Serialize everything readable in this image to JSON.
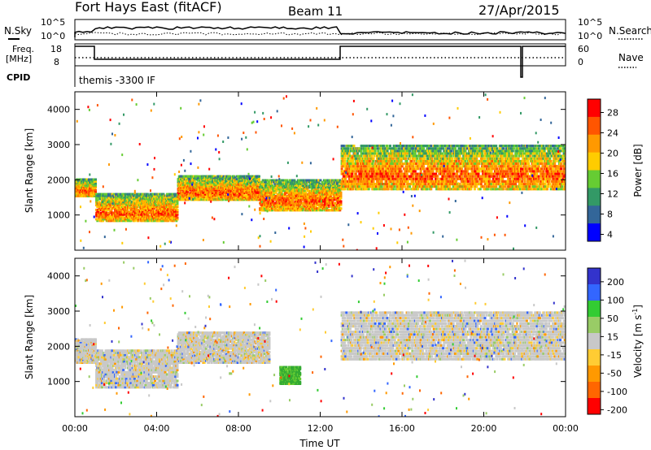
{
  "header": {
    "station": "Fort Hays East (fitACF)",
    "beam": "Beam 11",
    "date": "27/Apr/2015"
  },
  "top_panels": {
    "nsky_label": "N.Sky",
    "nsky_ticks": [
      "10^5",
      "10^0"
    ],
    "nsearch_label": "N.Search",
    "nsearch_ticks": [
      "10^5",
      "10^0"
    ],
    "freq_label_1": "Freq.",
    "freq_label_2": "[MHz]",
    "freq_ticks": [
      "18",
      "8"
    ],
    "nave_label": "Nave",
    "nave_ticks": [
      "60",
      "0"
    ],
    "cpid_label": "CPID",
    "cpid_value": "themis -3300 IF"
  },
  "chart_data": [
    {
      "type": "heatmap",
      "name": "power",
      "ylabel": "Slant Range [km]",
      "xlabel": "",
      "ylim": [
        0,
        4500
      ],
      "yticks": [
        "1000",
        "2000",
        "3000",
        "4000"
      ],
      "x_ticks": [
        "00:00",
        "04:00",
        "08:00",
        "12:00",
        "16:00",
        "20:00",
        "00:00"
      ],
      "colorbar": {
        "label": "Power [dB]",
        "ticks": [
          "28",
          "24",
          "20",
          "16",
          "12",
          "8",
          "4"
        ],
        "range": [
          0,
          30
        ],
        "colors": [
          "#ff0000",
          "#ff5500",
          "#ff9900",
          "#ffcc00",
          "#66cc33",
          "#339966",
          "#336699",
          "#0000ff"
        ]
      },
      "bands": [
        {
          "t": [
            0.0,
            1.0
          ],
          "r": [
            1500,
            2000
          ],
          "level": 24
        },
        {
          "t": [
            1.0,
            5.0
          ],
          "r": [
            800,
            1600
          ],
          "level": 24
        },
        {
          "t": [
            5.0,
            9.0
          ],
          "r": [
            1400,
            2100
          ],
          "level": 16
        },
        {
          "t": [
            9.0,
            13.0
          ],
          "r": [
            1100,
            2000
          ],
          "level": 16
        },
        {
          "t": [
            13.0,
            24.0
          ],
          "r": [
            1700,
            3000
          ],
          "level": 12
        }
      ]
    },
    {
      "type": "heatmap",
      "name": "velocity",
      "ylabel": "Slant Range [km]",
      "xlabel": "Time UT",
      "ylim": [
        0,
        4500
      ],
      "yticks": [
        "1000",
        "2000",
        "3000",
        "4000"
      ],
      "x_ticks": [
        "00:00",
        "04:00",
        "08:00",
        "12:00",
        "16:00",
        "20:00",
        "00:00"
      ],
      "colorbar": {
        "label": "Velocity [m s",
        "label_sup": "-1",
        "label_end": "]",
        "ticks": [
          "200",
          "100",
          "50",
          "15",
          "-15",
          "-50",
          "-100",
          "-200"
        ],
        "colors": [
          "#3333cc",
          "#3366ff",
          "#33cc33",
          "#99cc66",
          "#c8c8c8",
          "#ffcc33",
          "#ff9900",
          "#ff6600",
          "#ff0000"
        ]
      },
      "bands": [
        {
          "t": [
            0.0,
            1.0
          ],
          "r": [
            1500,
            2200
          ],
          "level": 0
        },
        {
          "t": [
            1.0,
            5.0
          ],
          "r": [
            800,
            1900
          ],
          "level": 0
        },
        {
          "t": [
            5.0,
            9.5
          ],
          "r": [
            1500,
            2400
          ],
          "level": 0
        },
        {
          "t": [
            10.0,
            11.0
          ],
          "r": [
            900,
            1400
          ],
          "level": 80
        },
        {
          "t": [
            13.0,
            24.0
          ],
          "r": [
            1600,
            3000
          ],
          "level": 0
        }
      ]
    }
  ]
}
